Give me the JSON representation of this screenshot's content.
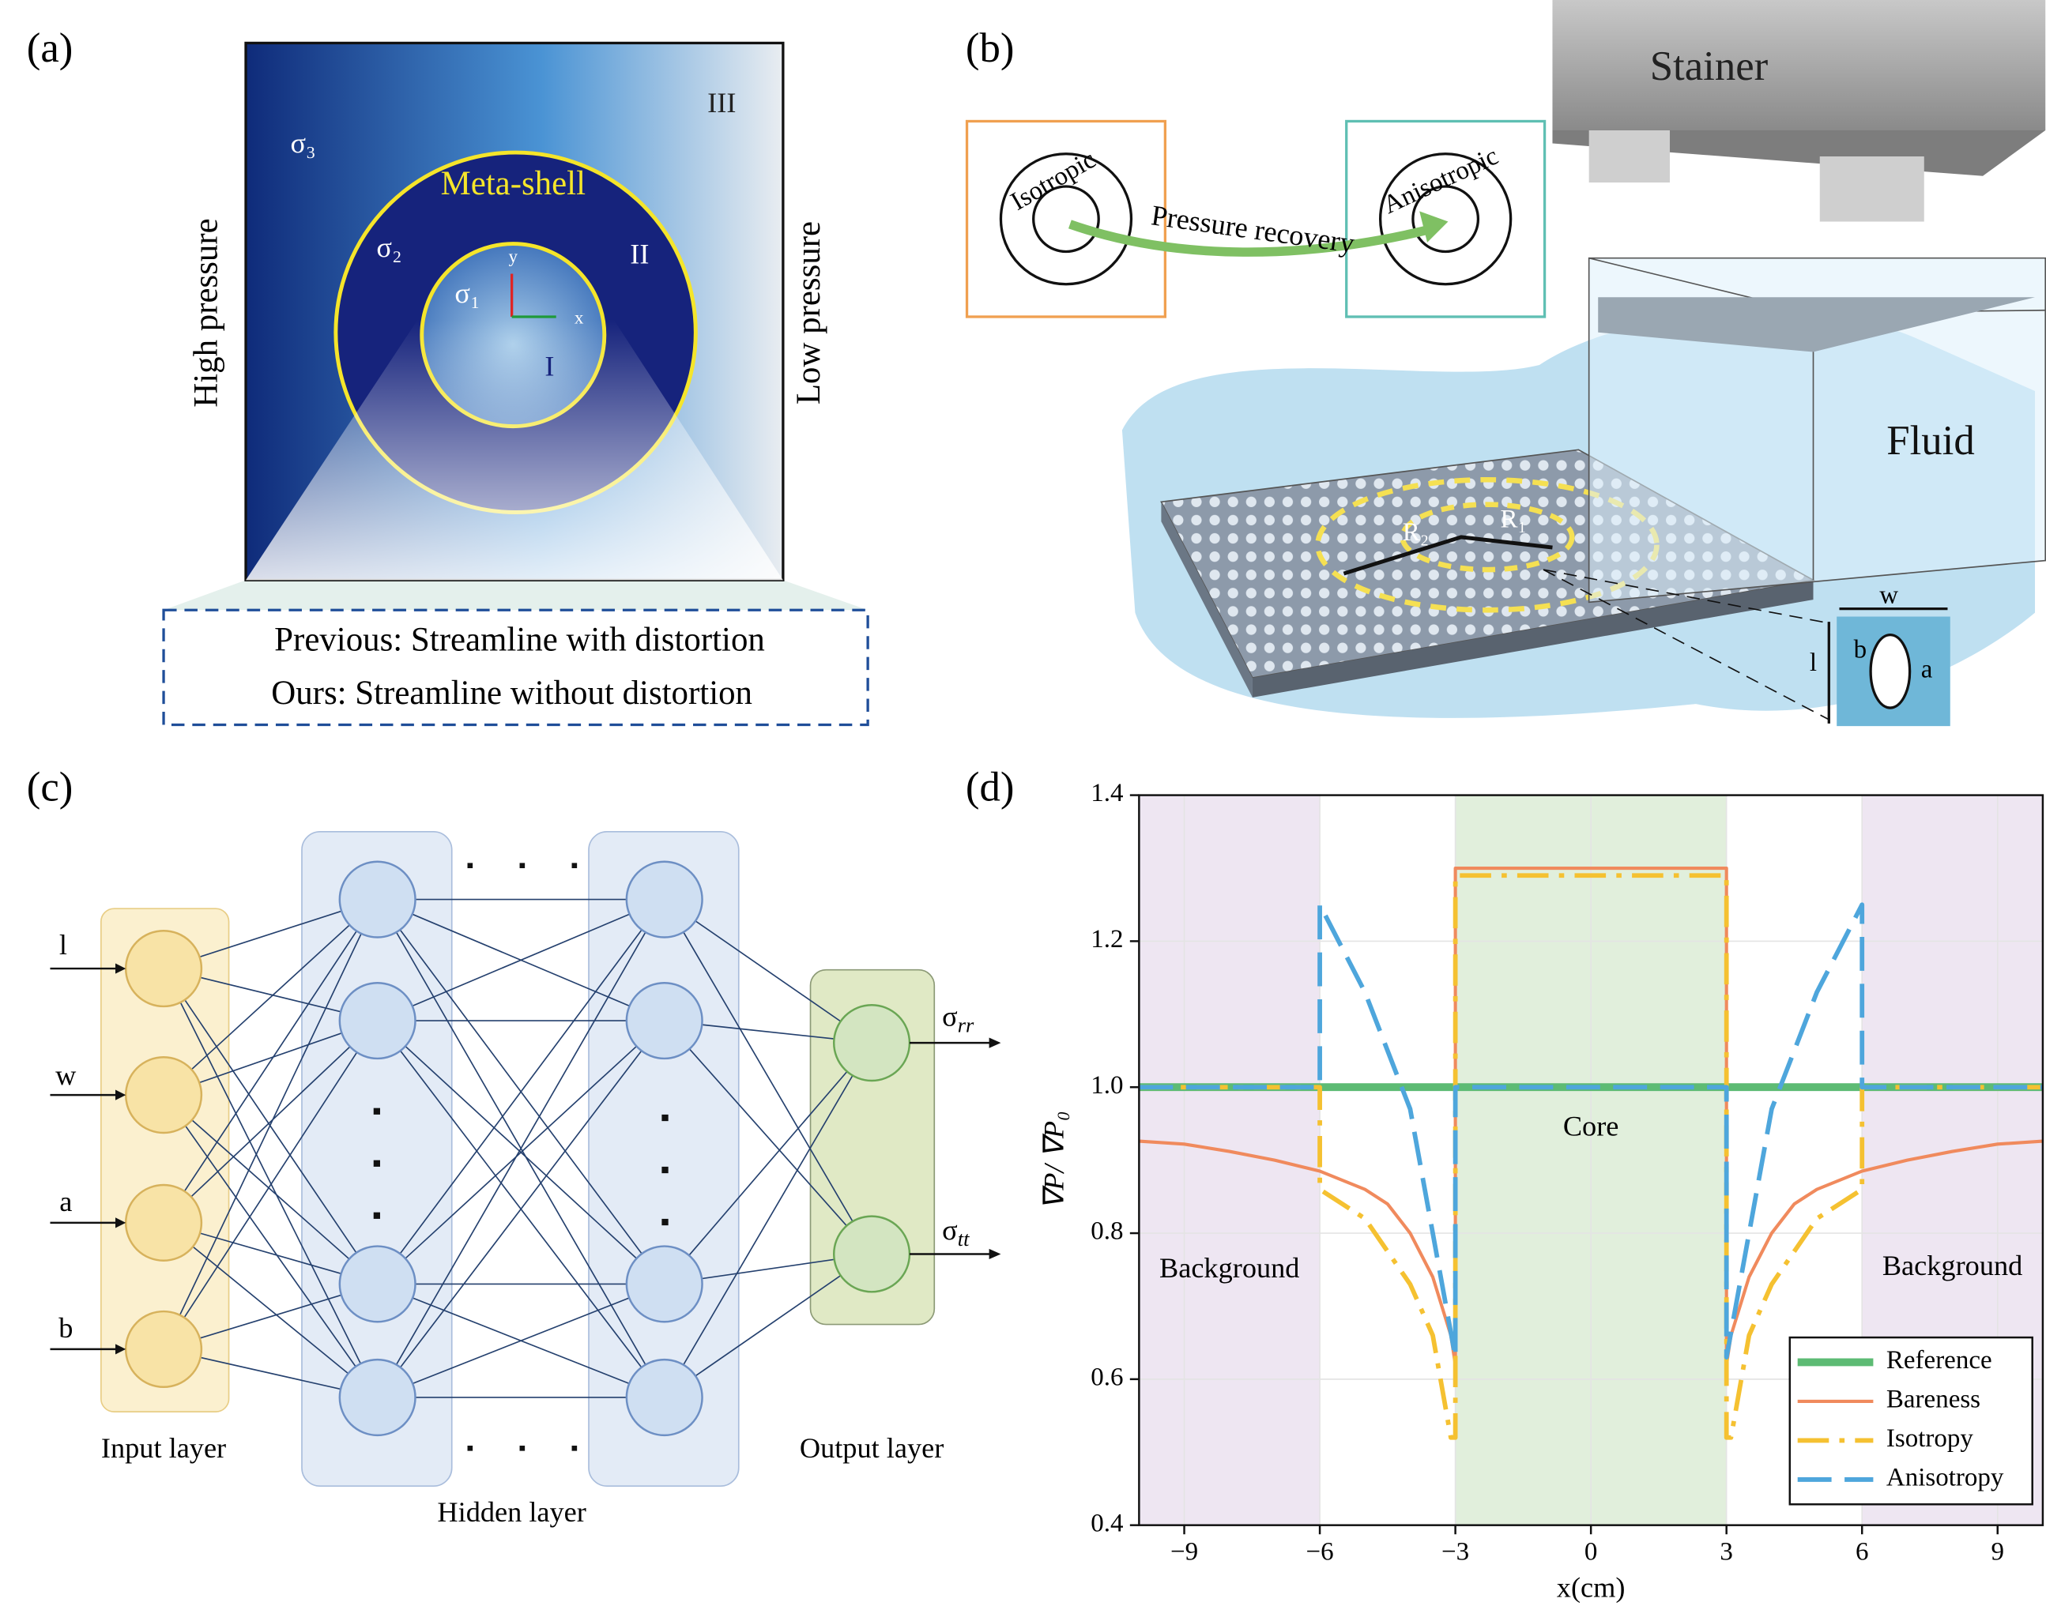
{
  "panel_a": {
    "label": "(a)",
    "sigma3": "σ₃",
    "sigma2": "σ₂",
    "sigma1": "σ₁",
    "shell": "Meta-shell",
    "region3": "III",
    "region2": "II",
    "region1": "I",
    "left": "High pressure",
    "right": "Low pressure",
    "axis_y": "y",
    "axis_x": "x",
    "note1": "Previous: Streamline with distortion",
    "note2": "Ours: Streamline without distortion"
  },
  "panel_b": {
    "label": "(b)",
    "iso": "Isotropic",
    "aniso": "Anisotropic",
    "arrow": "Pressure recovery",
    "stainer": "Stainer",
    "fluid": "Fluid",
    "r2": "R₂",
    "r1": "R₁",
    "w": "w",
    "l": "l",
    "b": "b",
    "a": "a"
  },
  "panel_c": {
    "label": "(c)",
    "inputs": [
      "l",
      "w",
      "a",
      "b"
    ],
    "out1": {
      "symbol": "σ",
      "sub": "rr"
    },
    "out2": {
      "symbol": "σ",
      "sub": "tt"
    },
    "input_layer": "Input layer",
    "hidden_layer": "Hidden layer",
    "output_layer": "Output layer"
  },
  "chart_data": {
    "type": "line",
    "label": "(d)",
    "xlabel": "x(cm)",
    "ylabel": "∇P/ ∇P₀",
    "xlim": [
      -10,
      10
    ],
    "ylim": [
      0.4,
      1.4
    ],
    "xticks": [
      {
        "value": -9,
        "label": "−9"
      },
      {
        "value": -6,
        "label": "−6"
      },
      {
        "value": -3,
        "label": "−3"
      },
      0,
      3,
      6,
      9
    ],
    "yticks": [
      0.4,
      0.6,
      0.8,
      {
        "value": 1,
        "label": "1.0"
      },
      1.2,
      1.4
    ],
    "grid": true,
    "legend": "lower right",
    "regions": [
      {
        "label": "Background",
        "range": [
          -10,
          -6
        ],
        "color": "#eee6f2"
      },
      {
        "label": "Core",
        "range": [
          -3,
          3
        ],
        "color": "#e1efdc"
      },
      {
        "label": "Background",
        "range": [
          6,
          10
        ],
        "color": "#eee6f2"
      }
    ],
    "series": [
      {
        "name": "Reference",
        "color": "#5dbb74",
        "linestyle": "solid",
        "width": 6,
        "x": [
          -10,
          10
        ],
        "values": [
          1,
          1
        ]
      },
      {
        "name": "Bareness",
        "color": "#f08a5d",
        "linestyle": "solid",
        "width": 2.5,
        "x": [
          -10,
          -9,
          -8,
          -7,
          -6,
          -5,
          -4.5,
          -4,
          -3.5,
          -3.1,
          -3,
          -3,
          3,
          3,
          3.1,
          3.5,
          4,
          4.5,
          5,
          6,
          7,
          8,
          9,
          10
        ],
        "values": [
          0.926,
          0.922,
          0.912,
          0.9,
          0.885,
          0.86,
          0.84,
          0.8,
          0.74,
          0.66,
          0.62,
          1.3,
          1.3,
          0.62,
          0.66,
          0.74,
          0.8,
          0.84,
          0.86,
          0.885,
          0.9,
          0.912,
          0.922,
          0.926
        ]
      },
      {
        "name": "Isotropy",
        "color": "#f5c131",
        "linestyle": "dashdot",
        "width": 3.5,
        "x": [
          -10,
          -6,
          -6,
          -5,
          -4,
          -3.5,
          -3.1,
          -3,
          -3,
          3,
          3,
          3.1,
          3.5,
          4,
          5,
          6,
          6,
          10
        ],
        "values": [
          1,
          1,
          0.86,
          0.82,
          0.73,
          0.66,
          0.52,
          0.52,
          1.29,
          1.29,
          0.52,
          0.52,
          0.66,
          0.73,
          0.82,
          0.86,
          1,
          1
        ]
      },
      {
        "name": "Anisotropy",
        "color": "#4ea6dc",
        "linestyle": "dashed",
        "width": 3.5,
        "x": [
          -10,
          -6,
          -6,
          -5,
          -4,
          -3,
          -3,
          3,
          3,
          4,
          5,
          6,
          6,
          10
        ],
        "values": [
          1,
          1,
          1.25,
          1.13,
          0.97,
          0.63,
          1,
          1,
          0.63,
          0.97,
          1.13,
          1.25,
          1,
          1
        ]
      }
    ]
  }
}
